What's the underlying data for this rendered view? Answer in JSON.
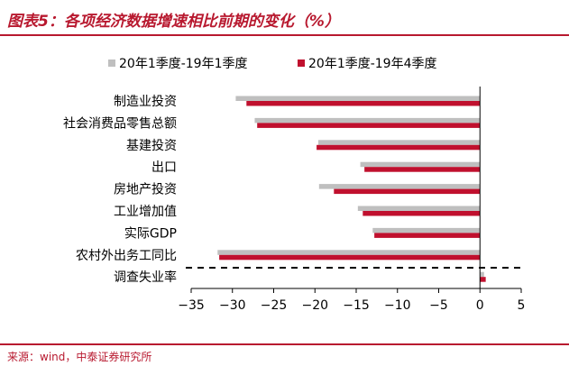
{
  "title": "图表5：各项经济数据增速相比前期的变化（%）",
  "source": "来源：wind，中泰证券研究所",
  "colors": {
    "series1": "#bfbfbf",
    "series2": "#c0102e",
    "accent": "#b8192f"
  },
  "chart_data": {
    "type": "bar",
    "orientation": "horizontal",
    "categories": [
      "制造业投资",
      "社会消费品零售总额",
      "基建投资",
      "出口",
      "房地产投资",
      "工业增加值",
      "实际GDP",
      "农村外出务工同比",
      "调查失业率"
    ],
    "series": [
      {
        "name": "20年1季度-19年1季度",
        "values": [
          -29.6,
          -27.3,
          -19.6,
          -14.5,
          -19.5,
          -14.8,
          -13.0,
          -31.8,
          0.5
        ]
      },
      {
        "name": "20年1季度-19年4季度",
        "values": [
          -28.3,
          -27.0,
          -19.8,
          -14.0,
          -17.7,
          -14.2,
          -12.8,
          -31.6,
          0.7
        ]
      }
    ],
    "xlim": [
      -35,
      5
    ],
    "xticks": [
      -35,
      -30,
      -25,
      -20,
      -15,
      -10,
      -5,
      0,
      5
    ],
    "xtick_labels": [
      "−35",
      "−30",
      "−25",
      "−20",
      "−15",
      "−10",
      "−5",
      "0",
      "5"
    ],
    "legend_position": "top",
    "annotations": [
      "dashed separator line between 农村外出务工同比 and 调查失业率"
    ]
  }
}
